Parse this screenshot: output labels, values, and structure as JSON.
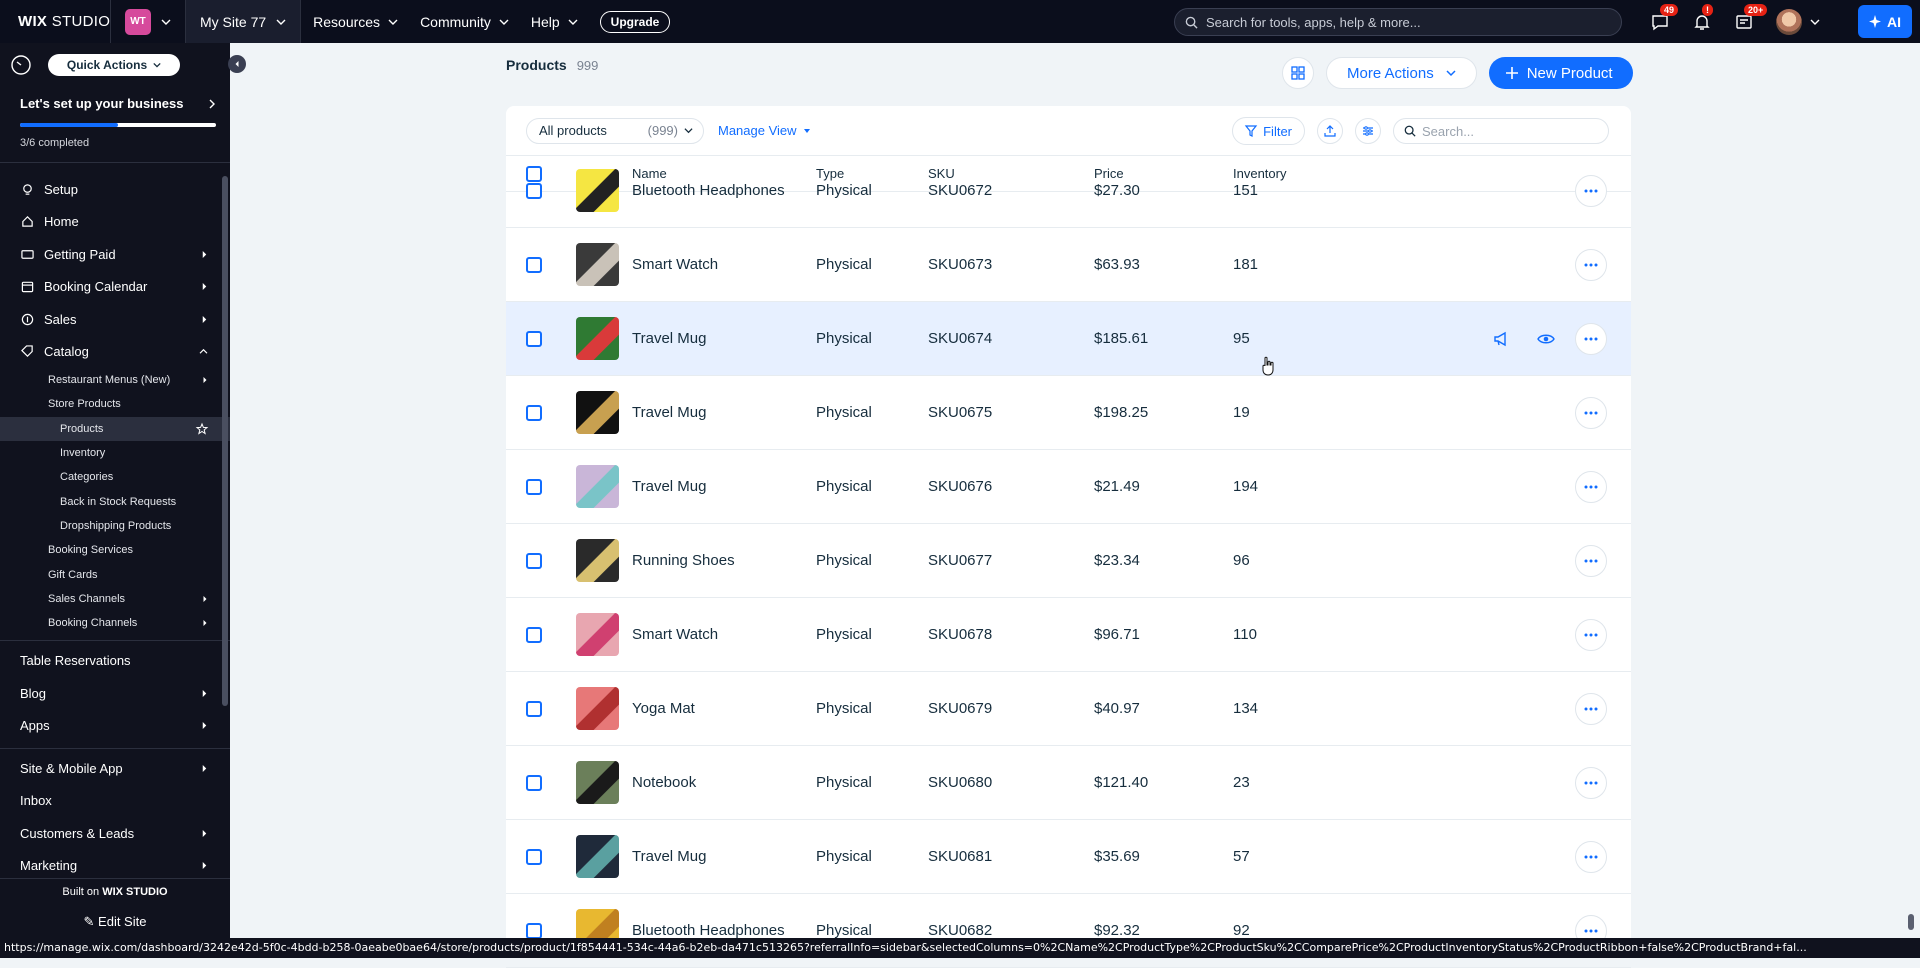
{
  "topbar": {
    "brand_wix": "WIX",
    "brand_studio": "STUDIO",
    "site_initials": "WT",
    "site_name": "My Site 77",
    "nav": [
      "Resources",
      "Community",
      "Help"
    ],
    "upgrade_label": "Upgrade",
    "search_placeholder": "Search for tools, apps, help & more...",
    "messages_badge": "49",
    "notifications_badge": "!",
    "updates_badge": "20+",
    "ai_label": "AI"
  },
  "sidebar": {
    "quick_actions_label": "Quick Actions",
    "setup_title": "Let's set up your business",
    "setup_progress": 0.5,
    "setup_status": "3/6 completed",
    "items": [
      {
        "label": "Setup",
        "icon": "bulb-icon",
        "chevron": false
      },
      {
        "label": "Home",
        "icon": "home-icon",
        "chevron": false
      },
      {
        "label": "Getting Paid",
        "icon": "dollar-icon",
        "chevron": true
      },
      {
        "label": "Booking Calendar",
        "icon": "calendar-icon",
        "chevron": true
      },
      {
        "label": "Sales",
        "icon": "sales-icon",
        "chevron": true
      },
      {
        "label": "Catalog",
        "icon": "catalog-icon",
        "chevron": "up"
      }
    ],
    "catalog_sub": [
      {
        "label": "Restaurant Menus (New)",
        "level": 1,
        "chevron": true
      },
      {
        "label": "Store Products",
        "level": 1,
        "chevron": false
      },
      {
        "label": "Products",
        "level": 2,
        "active": true,
        "star": true
      },
      {
        "label": "Inventory",
        "level": 2
      },
      {
        "label": "Categories",
        "level": 2
      },
      {
        "label": "Back in Stock Requests",
        "level": 2
      },
      {
        "label": "Dropshipping Products",
        "level": 2
      },
      {
        "label": "Booking Services",
        "level": 1
      },
      {
        "label": "Gift Cards",
        "level": 1
      },
      {
        "label": "Sales Channels",
        "level": 1,
        "chevron": true
      },
      {
        "label": "Booking Channels",
        "level": 1,
        "chevron": true
      }
    ],
    "items_after": [
      {
        "label": "Table Reservations",
        "chevron": false
      },
      {
        "label": "Blog",
        "chevron": true
      },
      {
        "label": "Apps",
        "chevron": true
      }
    ],
    "items_bottom": [
      {
        "label": "Site & Mobile App",
        "chevron": true
      },
      {
        "label": "Inbox",
        "chevron": false
      },
      {
        "label": "Customers & Leads",
        "chevron": true
      },
      {
        "label": "Marketing",
        "chevron": true
      }
    ],
    "built_on_label": "Built on",
    "built_on_brand": "WIX STUDIO",
    "edit_site_label": "Edit Site"
  },
  "header": {
    "title": "Products",
    "count": "999",
    "more_actions_label": "More Actions",
    "new_product_label": "New Product"
  },
  "toolbar": {
    "view_label": "All products",
    "view_count": "(999)",
    "manage_view_label": "Manage View",
    "filter_label": "Filter",
    "search_placeholder": "Search..."
  },
  "table": {
    "columns": [
      "Name",
      "Type",
      "SKU",
      "Price",
      "Inventory"
    ],
    "rows": [
      {
        "name": "Bluetooth Headphones",
        "type": "Physical",
        "sku": "SKU0672",
        "price": "$27.30",
        "inventory": "151",
        "thumb": [
          "#f5e642",
          "#222222"
        ]
      },
      {
        "name": "Smart Watch",
        "type": "Physical",
        "sku": "SKU0673",
        "price": "$63.93",
        "inventory": "181",
        "thumb": [
          "#3a3a3a",
          "#c9c2b8"
        ]
      },
      {
        "name": "Travel Mug",
        "type": "Physical",
        "sku": "SKU0674",
        "price": "$185.61",
        "inventory": "95",
        "thumb": [
          "#2f7a33",
          "#d93a3a"
        ],
        "hover": true
      },
      {
        "name": "Travel Mug",
        "type": "Physical",
        "sku": "SKU0675",
        "price": "$198.25",
        "inventory": "19",
        "thumb": [
          "#111111",
          "#c8a050"
        ]
      },
      {
        "name": "Travel Mug",
        "type": "Physical",
        "sku": "SKU0676",
        "price": "$21.49",
        "inventory": "194",
        "thumb": [
          "#c9b6d8",
          "#7ac4c8"
        ]
      },
      {
        "name": "Running Shoes",
        "type": "Physical",
        "sku": "SKU0677",
        "price": "$23.34",
        "inventory": "96",
        "thumb": [
          "#2a2a2a",
          "#d8c070"
        ]
      },
      {
        "name": "Smart Watch",
        "type": "Physical",
        "sku": "SKU0678",
        "price": "$96.71",
        "inventory": "110",
        "thumb": [
          "#e8a6b0",
          "#d04070"
        ]
      },
      {
        "name": "Yoga Mat",
        "type": "Physical",
        "sku": "SKU0679",
        "price": "$40.97",
        "inventory": "134",
        "thumb": [
          "#e77878",
          "#b03030"
        ]
      },
      {
        "name": "Notebook",
        "type": "Physical",
        "sku": "SKU0680",
        "price": "$121.40",
        "inventory": "23",
        "thumb": [
          "#6b7f5a",
          "#1a1a1a"
        ]
      },
      {
        "name": "Travel Mug",
        "type": "Physical",
        "sku": "SKU0681",
        "price": "$35.69",
        "inventory": "57",
        "thumb": [
          "#1f2a3a",
          "#5aa0a0"
        ]
      },
      {
        "name": "Bluetooth Headphones",
        "type": "Physical",
        "sku": "SKU0682",
        "price": "$92.32",
        "inventory": "92",
        "thumb": [
          "#e8b830",
          "#c08020"
        ]
      }
    ]
  },
  "status_url": "https://manage.wix.com/dashboard/3242e42d-5f0c-4bdd-b258-0aeabe0bae64/store/products/product/1f854441-534c-44a6-b2eb-da471c513265?referralInfo=sidebar&selectedColumns=0%2CName%2CProductType%2CProductSku%2CComparePrice%2CProductInventoryStatus%2CProductRibbon+false%2CProductBrand+fal...",
  "colors": {
    "accent": "#116dff",
    "topbar_bg": "#0b0e1c",
    "sidebar_bg": "#10121e",
    "hover_row": "#e7f0ff"
  }
}
